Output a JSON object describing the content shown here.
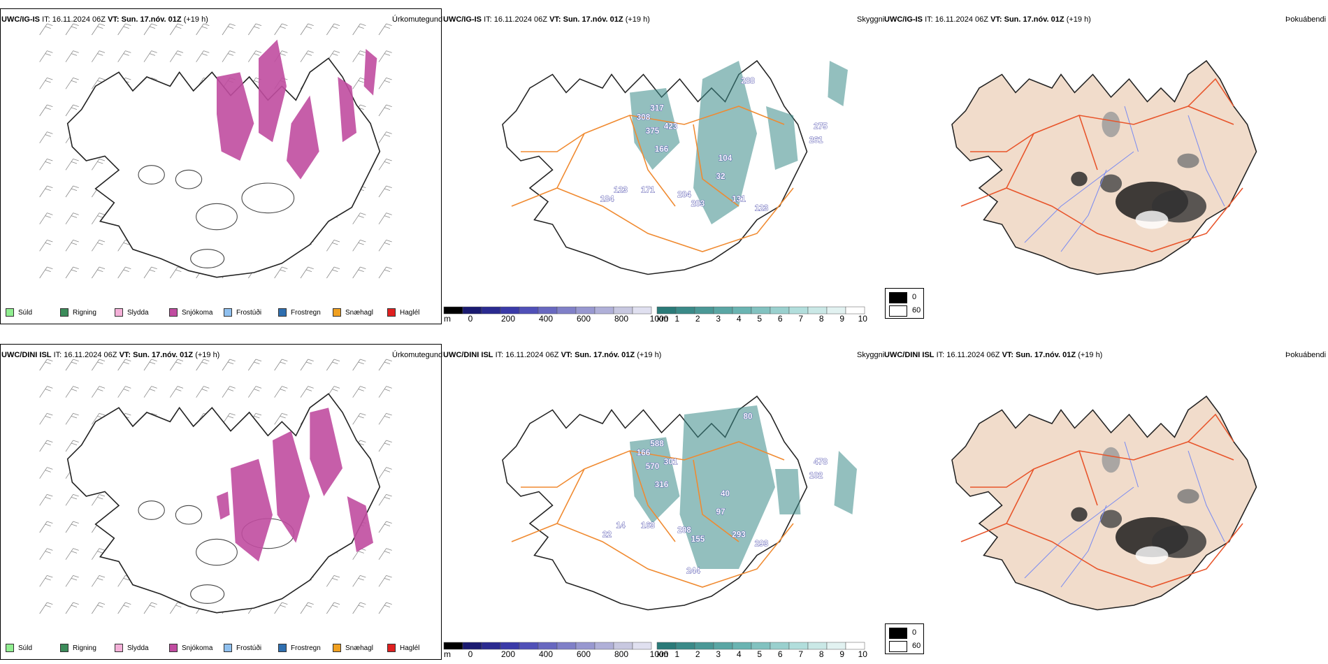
{
  "rows": [
    {
      "model": "UWC/IG-IS",
      "it_label": "IT:",
      "it_value": "16.11.2024 06Z",
      "vt_label": "VT:",
      "vt_value": "Sun. 17.nóv. 01Z",
      "lead": "(+19 h)",
      "panel_titles": [
        "Úrkomutegund",
        "Skyggni",
        "Þokuábendi"
      ],
      "ceiling_labels": [
        "317",
        "308",
        "375",
        "423",
        "166",
        "288",
        "275",
        "261",
        "104",
        "32",
        "171",
        "204",
        "203",
        "131",
        "123",
        "123",
        "184"
      ]
    },
    {
      "model": "UWC/DINI ISL",
      "it_label": "IT:",
      "it_value": "16.11.2024 06Z",
      "vt_label": "VT:",
      "vt_value": "Sun. 17.nóv. 01Z",
      "lead": "(+19 h)",
      "panel_titles": [
        "Úrkomutegund",
        "Skyggni",
        "Þokuábendi"
      ],
      "ceiling_labels": [
        "588",
        "166",
        "570",
        "301",
        "316",
        "80",
        "478",
        "102",
        "40",
        "97",
        "163",
        "208",
        "155",
        "293",
        "293",
        "14",
        "22",
        "244"
      ]
    }
  ],
  "precip_legend": [
    {
      "label": "Súld",
      "color": "#90ee90"
    },
    {
      "label": "Rigning",
      "color": "#3c8c5a"
    },
    {
      "label": "Slydda",
      "color": "#f4b0d8"
    },
    {
      "label": "Snjókoma",
      "color": "#c04ca0"
    },
    {
      "label": "Frostúði",
      "color": "#8fc0ef"
    },
    {
      "label": "Frostregn",
      "color": "#2f6fb0"
    },
    {
      "label": "Snæhagl",
      "color": "#f0a020"
    },
    {
      "label": "Haglél",
      "color": "#e02020"
    }
  ],
  "ceiling_scale": {
    "unit": "m",
    "ticks": [
      "0",
      "200",
      "400",
      "600",
      "800",
      "1000"
    ]
  },
  "visibility_scale": {
    "unit": "km",
    "ticks": [
      "1",
      "2",
      "3",
      "4",
      "5",
      "6",
      "7",
      "8",
      "9",
      "10"
    ]
  },
  "fog_scale": {
    "ticks": [
      "0",
      "60"
    ]
  },
  "colors": {
    "snow": "#c04ca0",
    "road": "#f08a30",
    "visibility": "#3a8a88",
    "ceiling": "#3030a0",
    "fog_land": "#f1dccb",
    "fog_roads": "#e8542a",
    "fog_rivers": "#7c8cf0"
  }
}
